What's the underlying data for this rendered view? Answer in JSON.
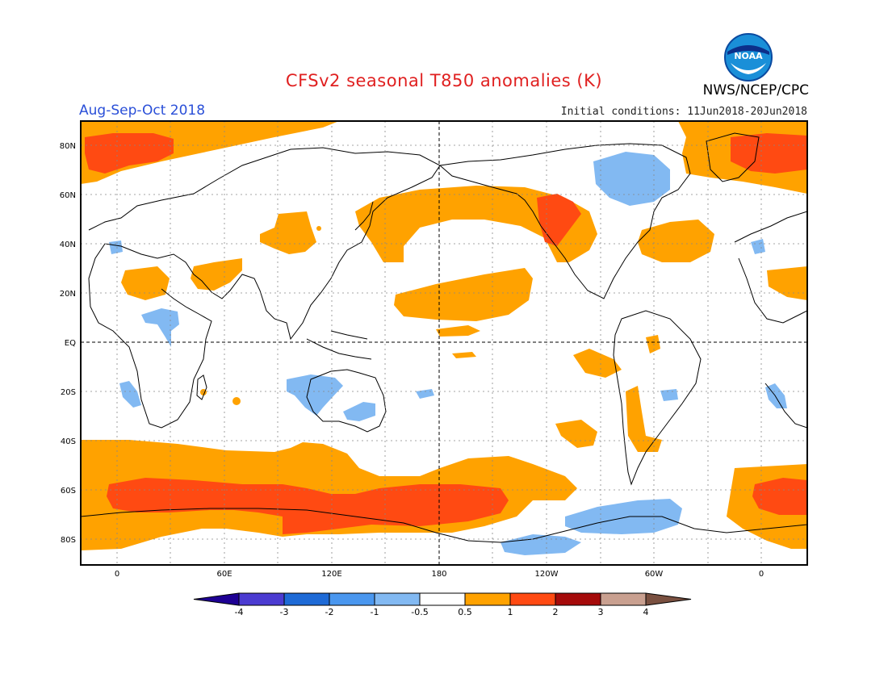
{
  "header": {
    "title": "CFSv2 seasonal T850 anomalies (K)",
    "season": "Aug-Sep-Oct 2018",
    "initial_conditions": "Initial conditions: 11Jun2018-20Jun2018",
    "organization": "NWS/NCEP/CPC",
    "logo_text": "NOAA"
  },
  "map": {
    "variable": "T850 anomalies",
    "units": "K",
    "lat_labels": [
      "80N",
      "60N",
      "40N",
      "20N",
      "EQ",
      "20S",
      "40S",
      "60S",
      "80S"
    ],
    "lon_labels": [
      "0",
      "60E",
      "120E",
      "180",
      "120W",
      "60W",
      "0"
    ]
  },
  "legend": {
    "labels": [
      "-4",
      "-3",
      "-2",
      "-1",
      "-0.5",
      "0.5",
      "1",
      "2",
      "3",
      "4"
    ],
    "colors": [
      "#1e0094",
      "#4b3bd1",
      "#1e6ad6",
      "#4a97ef",
      "#82b9f2",
      "#ffffff",
      "#ffa200",
      "#ff4a12",
      "#a50a0a",
      "#c9a090",
      "#7a5040"
    ]
  },
  "colors": {
    "warm1": "#ffa200",
    "warm2": "#ff4a12",
    "cool1": "#82b9f2",
    "cool2": "#4a97ef",
    "title": "#e02020",
    "season": "#2a4fd8"
  }
}
